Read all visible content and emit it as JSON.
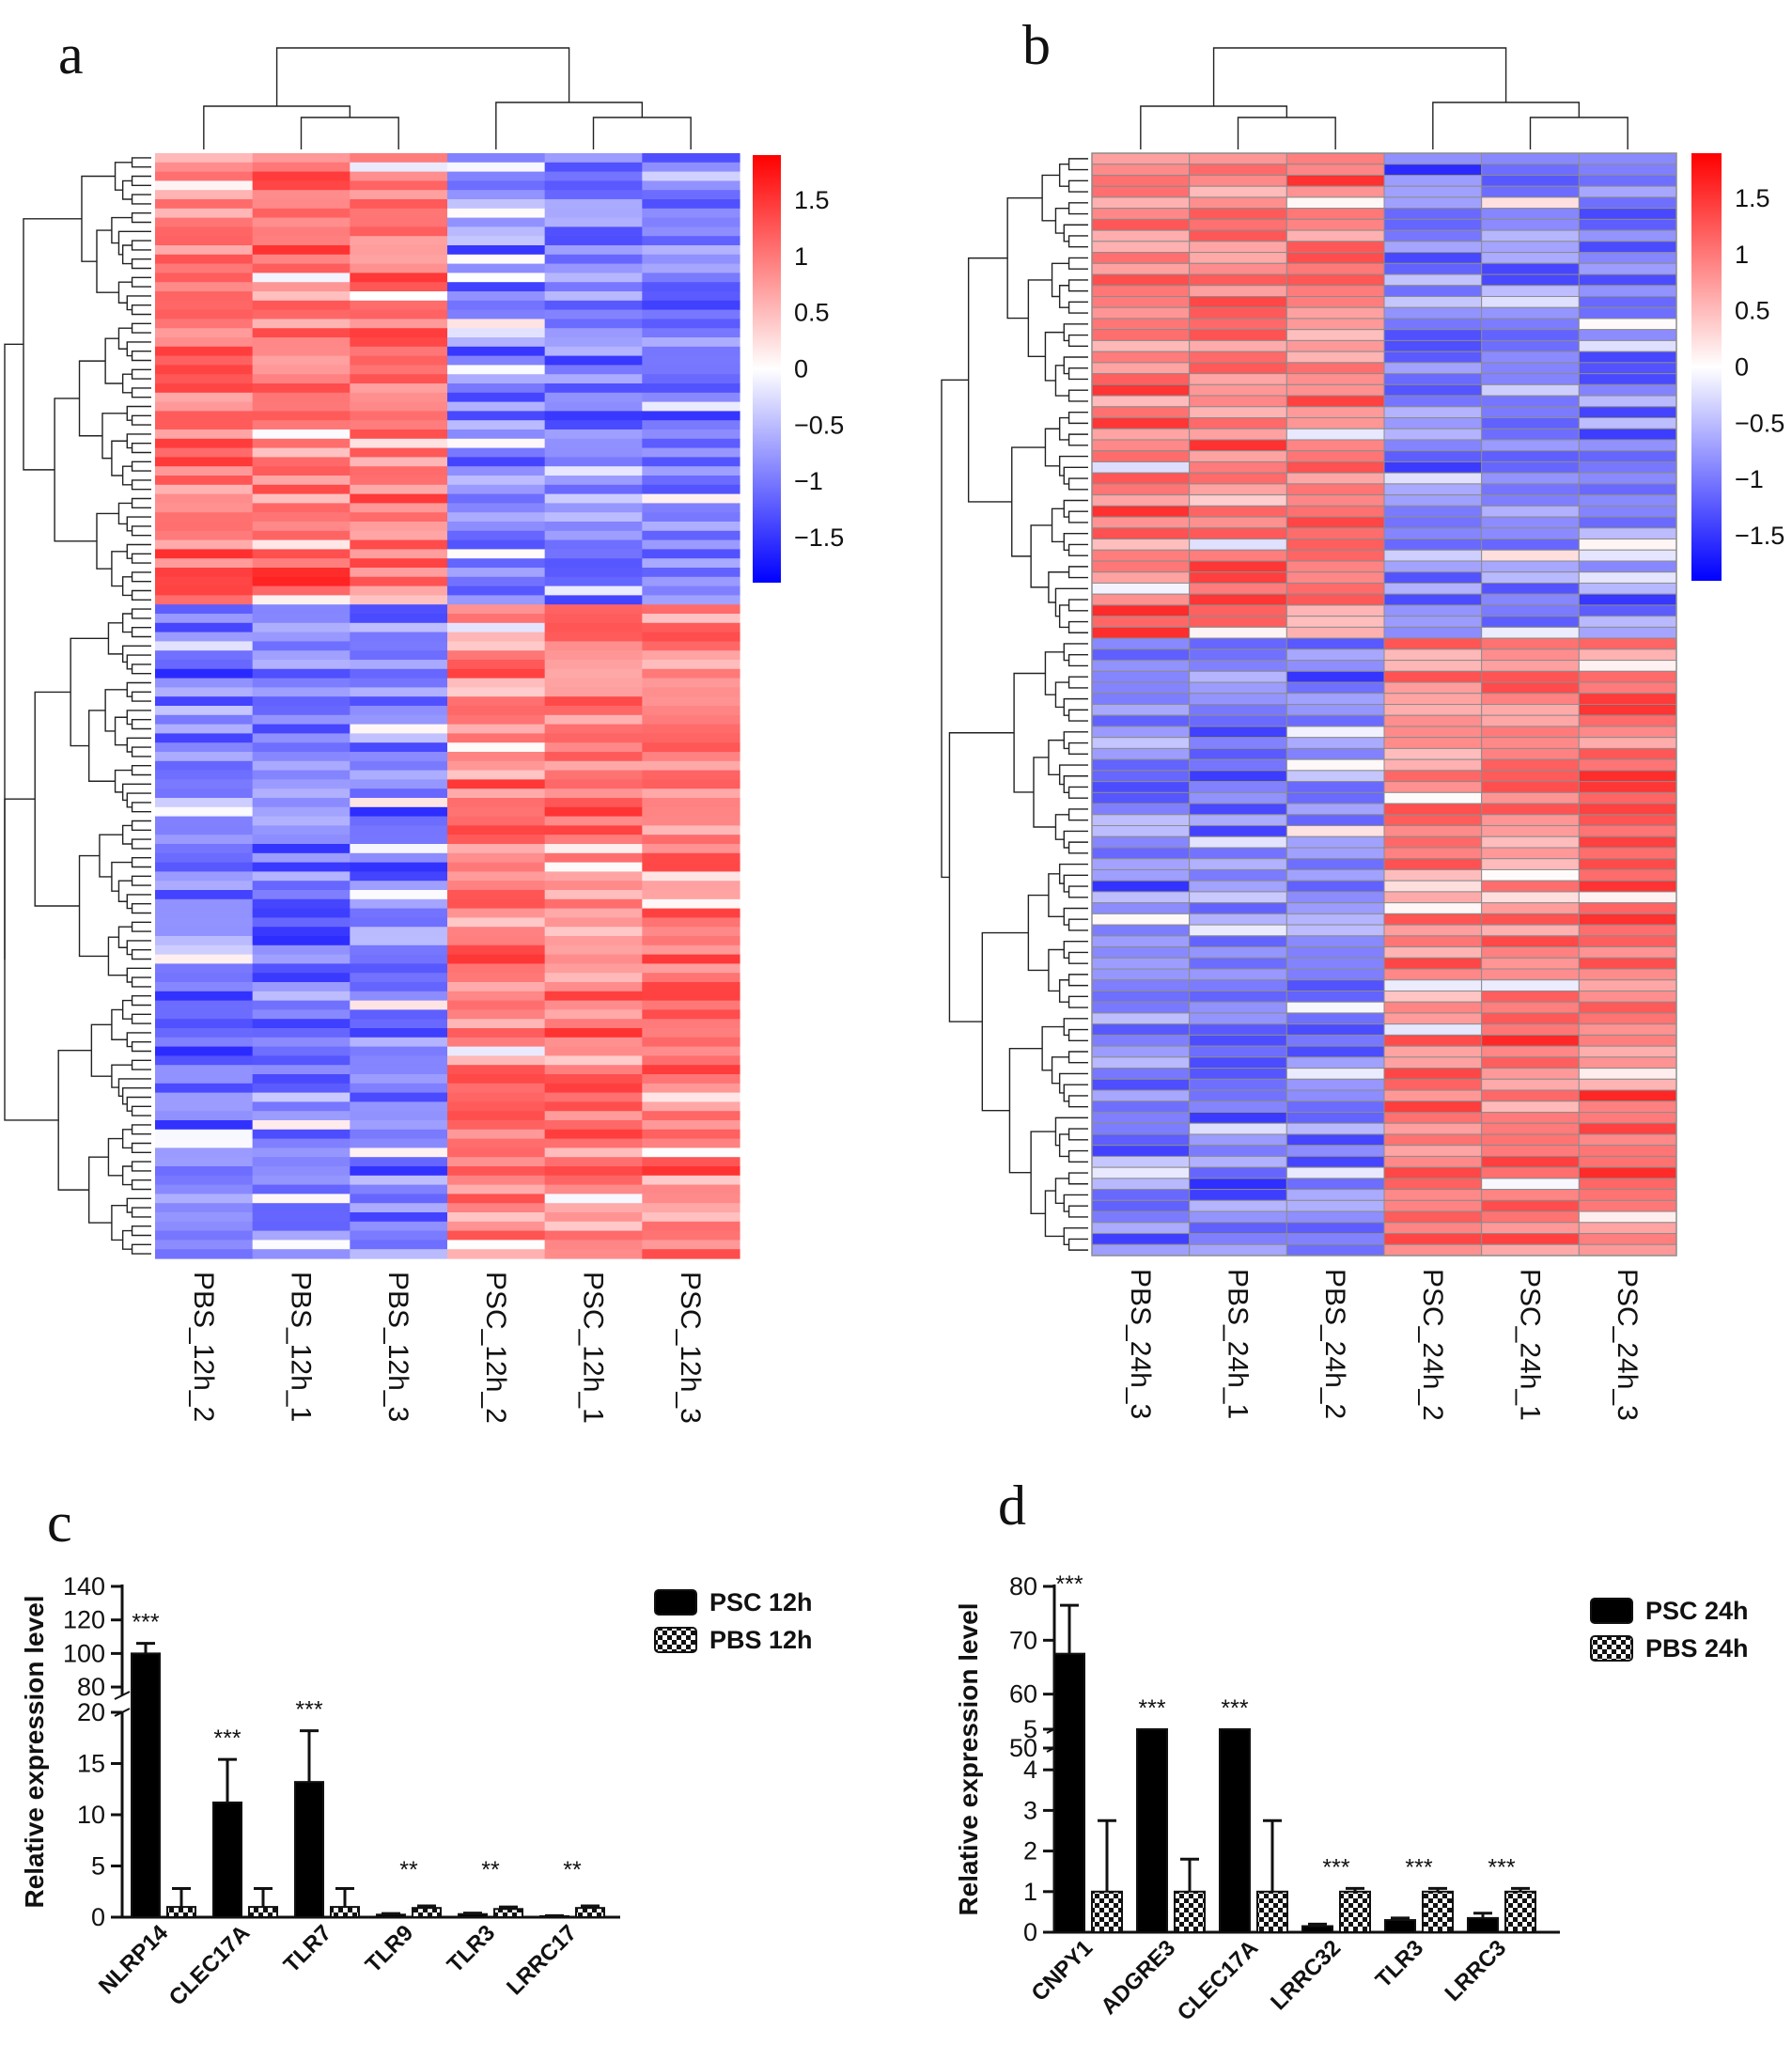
{
  "chart_data": [
    {
      "panel": "a",
      "type": "heatmap",
      "columns": [
        "PBS_12h_2",
        "PBS_12h_1",
        "PBS_12h_3",
        "PSC_12h_2",
        "PSC_12h_1",
        "PSC_12h_3"
      ],
      "row_count": 120,
      "upper_rows": 49,
      "colorbar_ticks": [
        "1.5",
        "1",
        "0.5",
        "0",
        "−0.5",
        "−1",
        "−1.5"
      ],
      "colorbar_range": [
        -1.9,
        1.9
      ],
      "colors": {
        "low": "#0000ff",
        "mid": "#ffffff",
        "high": "#ff0000"
      },
      "gridlines": false
    },
    {
      "panel": "b",
      "type": "heatmap",
      "columns": [
        "PBS_24h_3",
        "PBS_24h_1",
        "PBS_24h_2",
        "PSC_24h_2",
        "PSC_24h_1",
        "PSC_24h_3"
      ],
      "row_count": 100,
      "upper_rows": 44,
      "colorbar_ticks": [
        "1.5",
        "1",
        "0.5",
        "0",
        "−0.5",
        "−1",
        "−1.5"
      ],
      "colorbar_range": [
        -1.9,
        1.9
      ],
      "colors": {
        "low": "#0000ff",
        "mid": "#ffffff",
        "high": "#ff0000"
      },
      "gridlines": true
    },
    {
      "panel": "c",
      "type": "bar",
      "ylabel": "Relative expression level",
      "categories": [
        "NLRP14",
        "CLEC17A",
        "TLR7",
        "TLR9",
        "TLR3",
        "LRRC17"
      ],
      "series": [
        {
          "name": "PSC 12h",
          "values": [
            100,
            11.2,
            13.2,
            0.25,
            0.3,
            0.1
          ],
          "errors": [
            6,
            4.2,
            5,
            0.1,
            0.1,
            0.05
          ],
          "fill": "solid"
        },
        {
          "name": "PBS 12h",
          "values": [
            1,
            1,
            1,
            0.9,
            0.8,
            0.9
          ],
          "errors": [
            1.8,
            1.8,
            1.8,
            0.2,
            0.2,
            0.2
          ],
          "fill": "checker"
        }
      ],
      "significance": [
        "***",
        "***",
        "***",
        "**",
        "**",
        "**"
      ],
      "axis_break": {
        "lower": [
          0,
          20
        ],
        "upper": [
          75,
          140
        ]
      },
      "yticks_lower": [
        "0",
        "5",
        "10",
        "15",
        "20"
      ],
      "yticks_upper": [
        "80",
        "100",
        "120",
        "140"
      ]
    },
    {
      "panel": "d",
      "type": "bar",
      "ylabel": "Relative expression level",
      "categories": [
        "CNPY1",
        "ADGRE3",
        "CLEC17A",
        "LRRC32",
        "TLR3",
        "LRRC3"
      ],
      "series": [
        {
          "name": "PSC 24h",
          "values": [
            67.5,
            5,
            5,
            0.15,
            0.3,
            0.35
          ],
          "errors": [
            9,
            0,
            0,
            0.05,
            0.05,
            0.12
          ],
          "fill": "solid"
        },
        {
          "name": "PBS 24h",
          "values": [
            1,
            1,
            1,
            1,
            1,
            1
          ],
          "errors": [
            1.75,
            0.8,
            1.75,
            0.08,
            0.08,
            0.08
          ],
          "fill": "checker"
        }
      ],
      "significance": [
        "***",
        "***",
        "***",
        "***",
        "***",
        "***"
      ],
      "axis_break": {
        "lower": [
          0,
          5
        ],
        "upper": [
          50,
          80
        ]
      },
      "yticks_lower": [
        "0",
        "1",
        "2",
        "3",
        "4",
        "5"
      ],
      "yticks_upper": [
        "50",
        "60",
        "70",
        "80"
      ]
    }
  ],
  "labels": {
    "a": "a",
    "b": "b",
    "c": "c",
    "d": "d"
  }
}
